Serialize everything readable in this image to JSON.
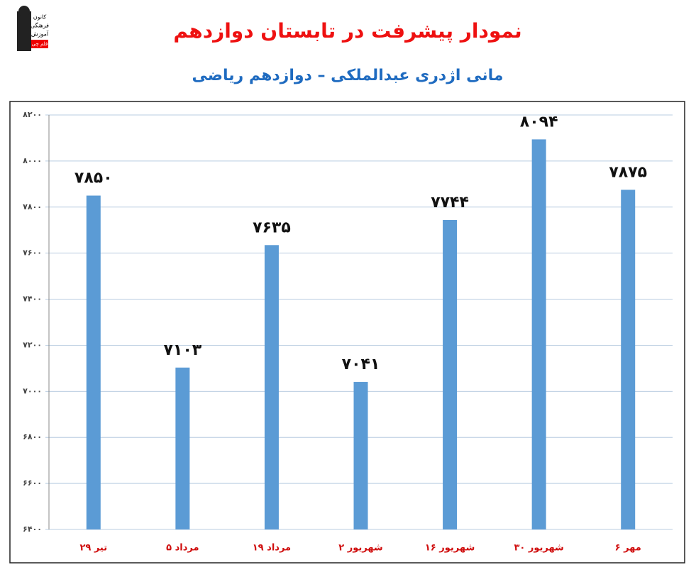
{
  "logo": {
    "lines": [
      "کانون",
      "فرهنگی",
      "آموزش",
      "قلم چی"
    ]
  },
  "chart_data": {
    "type": "bar",
    "title": "نمودار پیشرفت در تابستان دوازدهم",
    "subtitle": "مانی اژدری عبدالملکی – دوازدهم ریاضی",
    "categories": [
      "۲۹ تیر",
      "۵ مرداد",
      "۱۹ مرداد",
      "۲ شهریور",
      "۱۶ شهریور",
      "۳۰ شهریور",
      "۶ مهر"
    ],
    "values": [
      7850,
      7103,
      7635,
      7041,
      7744,
      8094,
      7875
    ],
    "value_labels": [
      "۷۸۵۰",
      "۷۱۰۳",
      "۷۶۳۵",
      "۷۰۴۱",
      "۷۷۴۴",
      "۸۰۹۴",
      "۷۸۷۵"
    ],
    "color": "#5b9bd5",
    "ylim": [
      6400,
      8200
    ],
    "yticks": [
      {
        "value": 6400,
        "label": "۶۴۰۰"
      },
      {
        "value": 6600,
        "label": "۶۶۰۰"
      },
      {
        "value": 6800,
        "label": "۶۸۰۰"
      },
      {
        "value": 7000,
        "label": "۷۰۰۰"
      },
      {
        "value": 7200,
        "label": "۷۲۰۰"
      },
      {
        "value": 7400,
        "label": "۷۴۰۰"
      },
      {
        "value": 7600,
        "label": "۷۶۰۰"
      },
      {
        "value": 7800,
        "label": "۷۸۰۰"
      },
      {
        "value": 8000,
        "label": "۸۰۰۰"
      },
      {
        "value": 8200,
        "label": "۸۲۰۰"
      }
    ],
    "grid": true
  }
}
